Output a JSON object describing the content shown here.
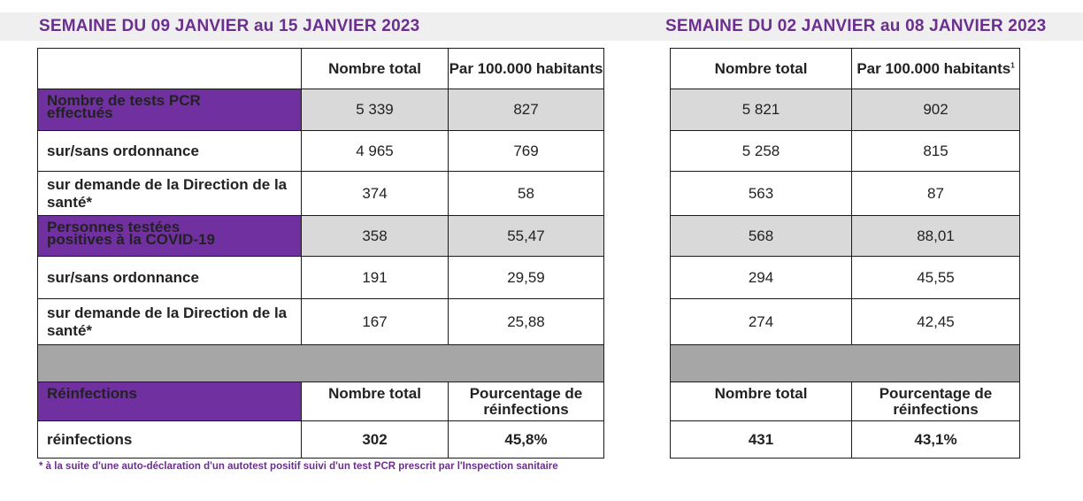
{
  "headings": {
    "left": "SEMAINE DU 09 JANVIER au 15 JANVIER 2023",
    "right": "SEMAINE DU 02 JANVIER au 08 JANVIER 2023"
  },
  "columns": {
    "total": "Nombre total",
    "per100k": "Par 100.000 habitants",
    "per100k_sup": "1",
    "pct_line1": "Pourcentage de",
    "pct_line2": "réinfections"
  },
  "rows": {
    "pcr_line1": "Nombre de tests PCR",
    "pcr_line2": "effectués",
    "prescription": "sur/sans ordonnance",
    "direction": "sur demande de la Direction de la santé*",
    "positive_line1": "Personnes testées",
    "positive_line2": "positives à la COVID-19",
    "reinfections_header": "Réinfections",
    "reinfections": "réinfections"
  },
  "week_current": {
    "pcr_total": "5 339",
    "pcr_per100k": "827",
    "pcr_presc_total": "4 965",
    "pcr_presc_per100k": "769",
    "pcr_dir_total": "374",
    "pcr_dir_per100k": "58",
    "pos_total": "358",
    "pos_per100k": "55,47",
    "pos_presc_total": "191",
    "pos_presc_per100k": "29,59",
    "pos_dir_total": "167",
    "pos_dir_per100k": "25,88",
    "reinf_total": "302",
    "reinf_pct": "45,8%"
  },
  "week_previous": {
    "pcr_total": "5 821",
    "pcr_per100k": "902",
    "pcr_presc_total": "5 258",
    "pcr_presc_per100k": "815",
    "pcr_dir_total": "563",
    "pcr_dir_per100k": "87",
    "pos_total": "568",
    "pos_per100k": "88,01",
    "pos_presc_total": "294",
    "pos_presc_per100k": "45,55",
    "pos_dir_total": "274",
    "pos_dir_per100k": "42,45",
    "reinf_total": "431",
    "reinf_pct": "43,1%"
  },
  "footnote": "* à la suite d'une auto-déclaration d'un autotest positif suivi d'un test PCR prescrit par l'Inspection sanitaire",
  "colors": {
    "purple": "#7030a0",
    "heading": "#6b2f8f",
    "shade": "#d9d9d9",
    "dark": "#a6a6a6"
  }
}
